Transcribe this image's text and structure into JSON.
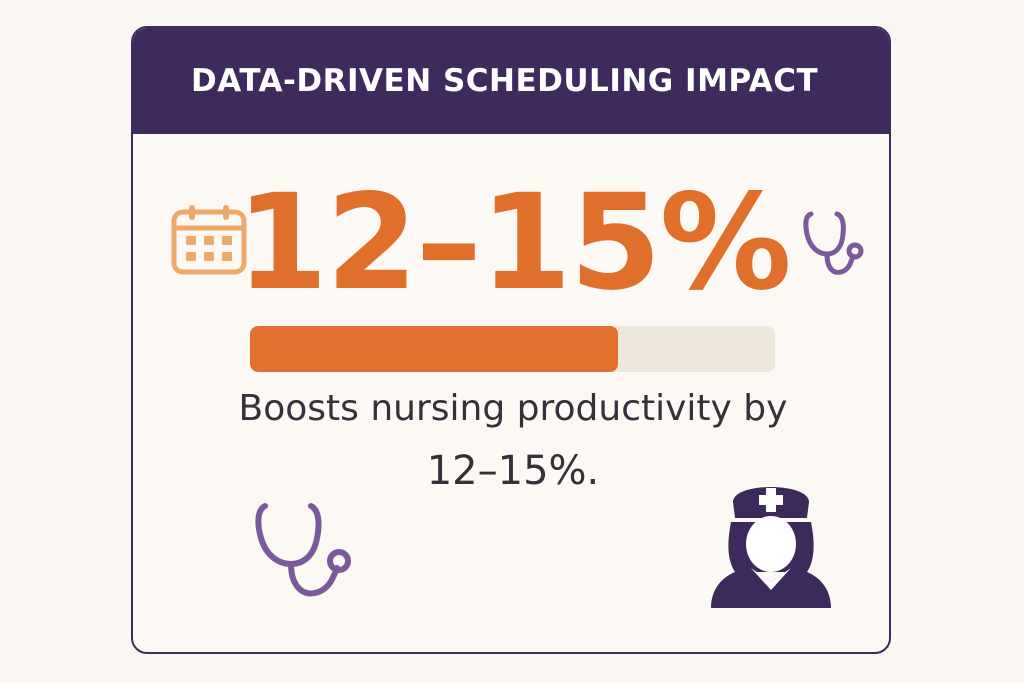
{
  "header": {
    "title": "DATA-DRIVEN SCHEDULING IMPACT"
  },
  "stat": {
    "value": "12–15%",
    "progress_fraction": 0.7,
    "caption_line1": "Boosts nursing productivity by",
    "caption_line2": "12–15%."
  },
  "icons": {
    "calendar": "calendar-icon",
    "stethoscope": "stethoscope-icon",
    "nurse": "nurse-icon"
  },
  "colors": {
    "header_bg": "#3f2a5e",
    "accent_orange": "#e06f2c",
    "calendar_orange": "#f0a86a",
    "icon_purple": "#7a5a9c",
    "nurse_purple": "#3d2a5c",
    "track": "#ede7de",
    "card_bg": "#fcf9f5",
    "page_bg": "#faf6f1"
  }
}
